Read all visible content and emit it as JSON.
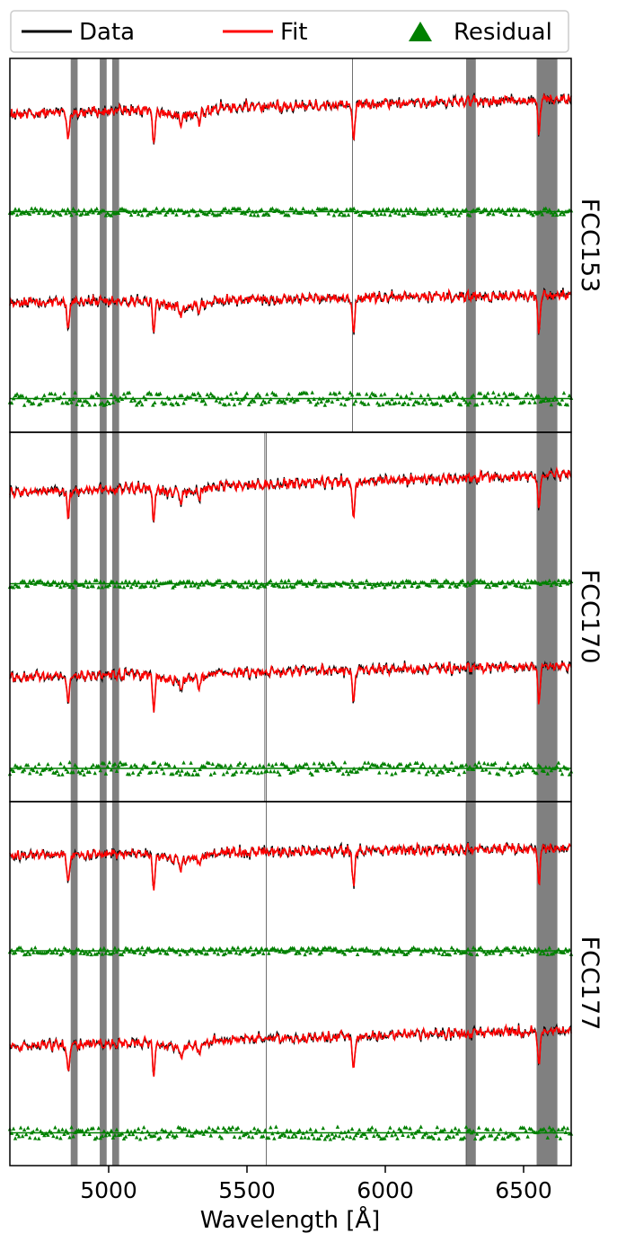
{
  "legend": {
    "entries": [
      {
        "label": "Data",
        "marker": "line",
        "color": "#000000"
      },
      {
        "label": "Fit",
        "marker": "line",
        "color": "#ff0000"
      },
      {
        "label": "Residual",
        "marker": "triangle",
        "color": "#008000"
      }
    ],
    "placement": "top, outside, full-width"
  },
  "chart_data": {
    "type": "line",
    "xlabel": "Wavelength [Å]",
    "xlim": [
      4650,
      6680
    ],
    "xticks": [
      5000,
      5500,
      6000,
      6500
    ],
    "xtick_labels": [
      "5000",
      "5500",
      "6000",
      "6500"
    ],
    "y_ticks_shown": false,
    "grid": false,
    "masked_regions": [
      [
        4870,
        4895
      ],
      [
        4975,
        5000
      ],
      [
        5020,
        5045
      ],
      [
        6300,
        6335
      ],
      [
        6555,
        6630
      ]
    ],
    "colors": {
      "data": "#000000",
      "fit": "#ff0000",
      "residual": "#008000",
      "mask": "#808080"
    },
    "panels": [
      {
        "label": "FCC153",
        "skyline_marks": [
          5889
        ],
        "spectra": [
          {
            "continuum_start": 0.72,
            "continuum_end": 0.88
          },
          {
            "continuum_start": 0.7,
            "continuum_end": 0.78
          }
        ]
      },
      {
        "label": "FCC170",
        "skyline_marks": [
          5572,
          5577
        ],
        "spectra": [
          {
            "continuum_start": 0.66,
            "continuum_end": 0.85
          },
          {
            "continuum_start": 0.66,
            "continuum_end": 0.78
          }
        ]
      },
      {
        "label": "FCC177",
        "skyline_marks": [
          5577,
          6300
        ],
        "spectra": [
          {
            "continuum_start": 0.72,
            "continuum_end": 0.8
          },
          {
            "continuum_start": 0.62,
            "continuum_end": 0.8
          }
        ]
      }
    ],
    "absorption_features": [
      {
        "wavelength": 4861,
        "depth": 0.3
      },
      {
        "wavelength": 5170,
        "depth": 0.35
      },
      {
        "wavelength": 5270,
        "depth": 0.12
      },
      {
        "wavelength": 5335,
        "depth": 0.1
      },
      {
        "wavelength": 5893,
        "depth": 0.4
      },
      {
        "wavelength": 6563,
        "depth": 0.4
      }
    ]
  }
}
